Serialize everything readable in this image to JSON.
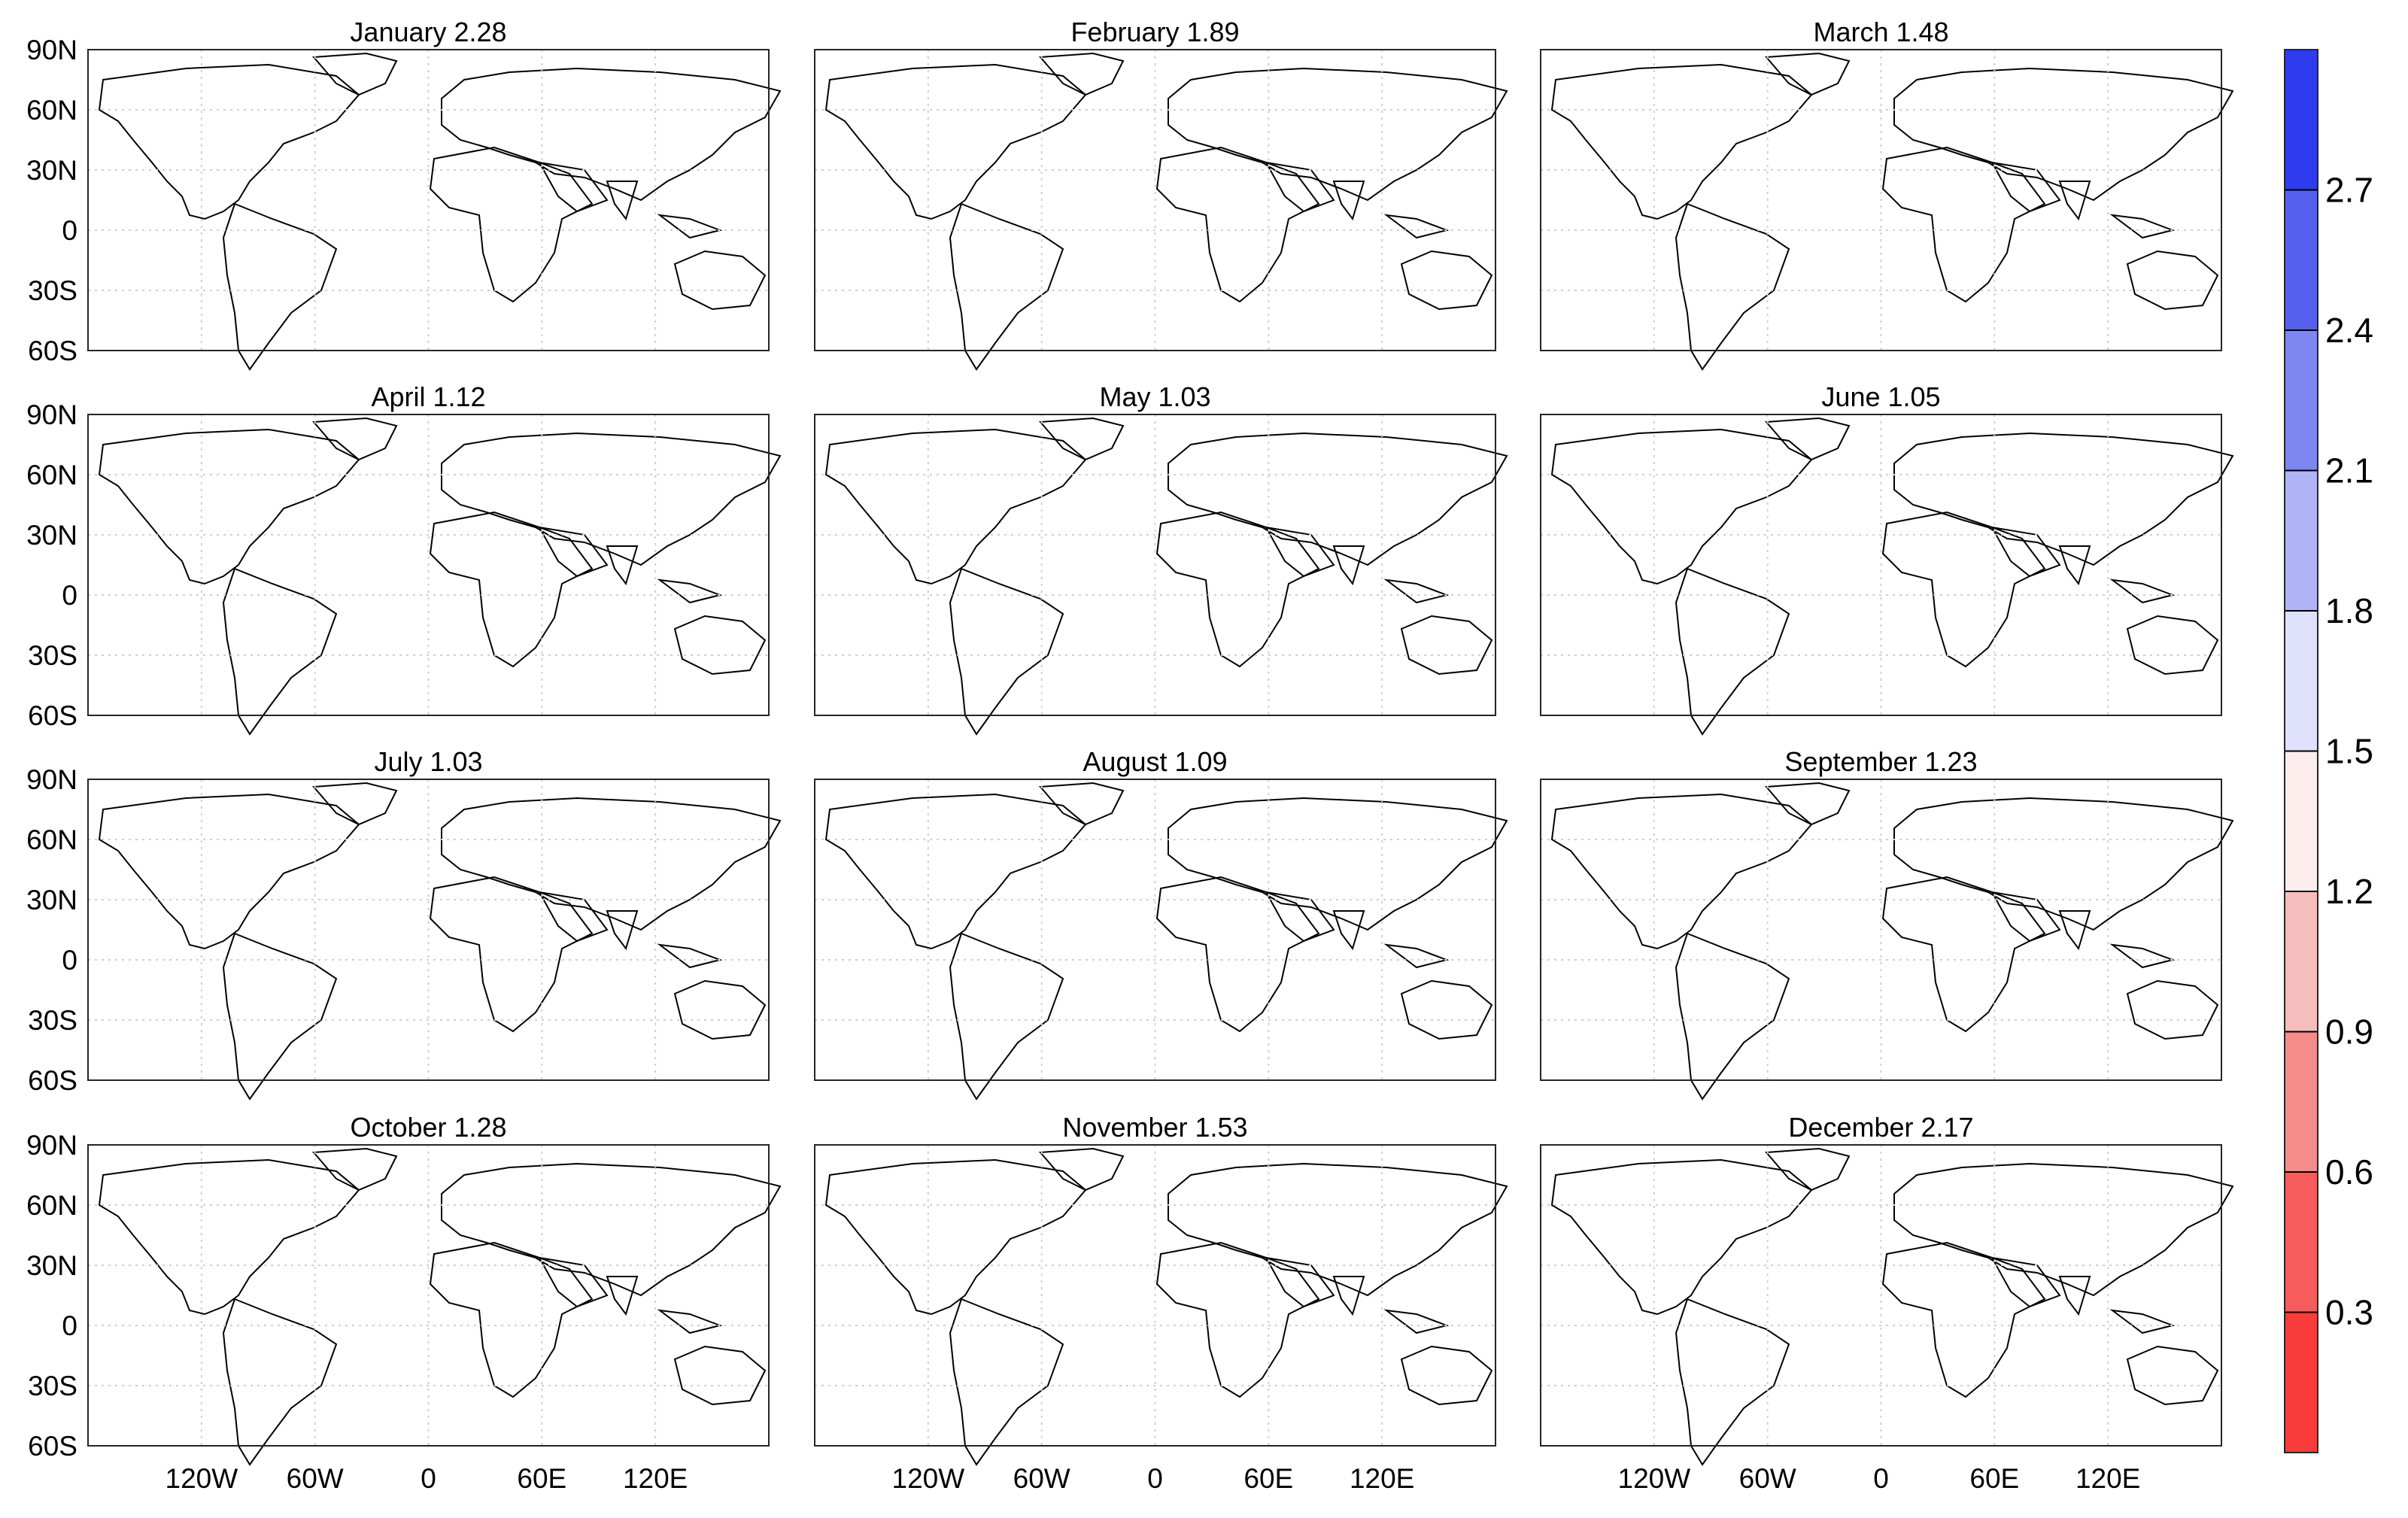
{
  "chart_data": {
    "type": "heatmap",
    "description_type": "small multiples of global gridded maps",
    "layout": "4 rows x 3 columns",
    "panels": [
      {
        "month": "January",
        "value_label": "2.28",
        "title": "January 2.28"
      },
      {
        "month": "February",
        "value_label": "1.89",
        "title": "February 1.89"
      },
      {
        "month": "March",
        "value_label": "1.48",
        "title": "March 1.48"
      },
      {
        "month": "April",
        "value_label": "1.12",
        "title": "April 1.12"
      },
      {
        "month": "May",
        "value_label": "1.03",
        "title": "May 1.03"
      },
      {
        "month": "June",
        "value_label": "1.05",
        "title": "June 1.05"
      },
      {
        "month": "July",
        "value_label": "1.03",
        "title": "July 1.03"
      },
      {
        "month": "August",
        "value_label": "1.09",
        "title": "August 1.09"
      },
      {
        "month": "September",
        "value_label": "1.23",
        "title": "September 1.23"
      },
      {
        "month": "October",
        "value_label": "1.28",
        "title": "October 1.28"
      },
      {
        "month": "November",
        "value_label": "1.53",
        "title": "November 1.53"
      },
      {
        "month": "December",
        "value_label": "2.17",
        "title": "December 2.17"
      }
    ],
    "x_axis": {
      "lon_range": [
        -180,
        180
      ],
      "ticks": [
        -120,
        -60,
        0,
        60,
        120
      ],
      "tick_labels": [
        "120W",
        "60W",
        "0",
        "60E",
        "120E"
      ]
    },
    "y_axis": {
      "lat_range": [
        -60,
        90
      ],
      "ticks": [
        90,
        60,
        30,
        0,
        -30,
        -60
      ],
      "tick_labels": [
        "90N",
        "60N",
        "30N",
        "0",
        "30S",
        "60S"
      ]
    },
    "grid": true,
    "colorbar": {
      "range": [
        0,
        3
      ],
      "levels": [
        0,
        0.3,
        0.6,
        0.9,
        1.2,
        1.5,
        1.8,
        2.1,
        2.4,
        2.7,
        3.0
      ],
      "tick_values": [
        0.3,
        0.6,
        0.9,
        1.2,
        1.5,
        1.8,
        2.1,
        2.4,
        2.7
      ],
      "tick_labels": [
        "0.3",
        "0.6",
        "0.9",
        "1.2",
        "1.5",
        "1.8",
        "2.1",
        "2.4",
        "2.7"
      ],
      "colors": [
        "#f83b3b",
        "#f65c5c",
        "#f58c8c",
        "#f7bdbd",
        "#fdeeee",
        "#dfe0fb",
        "#afb4f7",
        "#7e86f2",
        "#5560ef",
        "#2e3bef"
      ],
      "placement": "right"
    }
  }
}
